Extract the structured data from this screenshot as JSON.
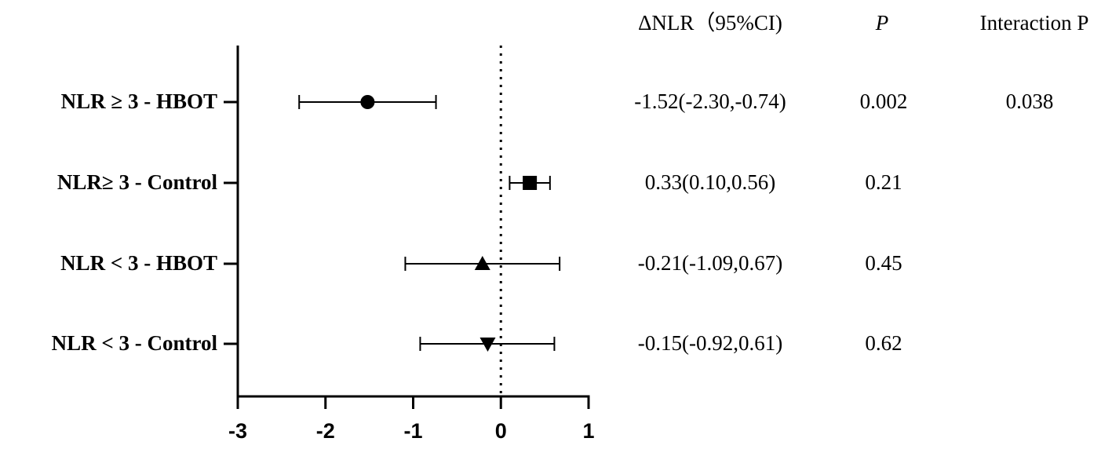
{
  "chart_data": {
    "type": "forest",
    "categories": [
      "NLR ≥ 3 - HBOT",
      "NLR≥ 3 - Control",
      "NLR < 3 - HBOT",
      "NLR < 3 - Control"
    ],
    "series": [
      {
        "values": [
          -1.52,
          0.33,
          -0.21,
          -0.15
        ],
        "lower": [
          -2.3,
          0.1,
          -1.09,
          -0.92
        ],
        "upper": [
          -0.74,
          0.56,
          0.67,
          0.61
        ],
        "value_labels": [
          "-1.52(-2.30,-0.74)",
          "0.33(0.10,0.56)",
          "-0.21(-1.09,0.67)",
          "-0.15(-0.92,0.61)"
        ],
        "markers": [
          "circle",
          "square",
          "triangle",
          "triangle-down"
        ],
        "color": "#000000"
      }
    ],
    "p_values": [
      0.002,
      0.21,
      0.45,
      0.62
    ],
    "interaction_p": 0.038,
    "column_headers": [
      "ΔNLR（95%CI)",
      "P",
      "Interaction P"
    ],
    "xlim": [
      -3,
      1
    ],
    "xticks": [
      -3,
      -2,
      -1,
      0,
      1
    ],
    "reference_line": 0
  }
}
